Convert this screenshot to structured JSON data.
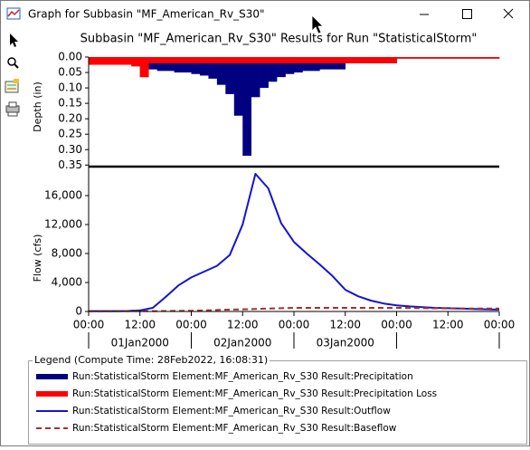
{
  "window": {
    "title": "Graph for Subbasin \"MF_American_Rv_S30\""
  },
  "legend": {
    "title": "Legend (Compute Time: 28Feb2022, 16:08:31)"
  },
  "chart_data": [
    {
      "type": "bar",
      "title": "Subbasin \"MF_American_Rv_S30\" Results for Run \"StatisticalStorm\"",
      "ylabel": "Depth (in)",
      "y_inverted": true,
      "xlim": [
        "01Jan2000 00:00",
        "05Jan2000 00:00"
      ],
      "ylim": [
        0,
        0.355
      ],
      "yticks": [
        {
          "value": 0,
          "label": "0.00"
        },
        0.05,
        {
          "value": 0.1,
          "label": "0.10"
        },
        0.15,
        {
          "value": 0.2,
          "label": "0.20"
        },
        0.25,
        {
          "value": 0.3,
          "label": "0.30"
        },
        0.35
      ],
      "x": [
        "01Jan2000 00:00",
        "01Jan2000 02:00",
        "01Jan2000 04:00",
        "01Jan2000 06:00",
        "01Jan2000 08:00",
        "01Jan2000 10:00",
        "01Jan2000 12:00",
        "01Jan2000 14:00",
        "01Jan2000 16:00",
        "01Jan2000 18:00",
        "01Jan2000 20:00",
        "01Jan2000 22:00",
        "02Jan2000 00:00",
        "02Jan2000 02:00",
        "02Jan2000 04:00",
        "02Jan2000 06:00",
        "02Jan2000 08:00",
        "02Jan2000 10:00",
        "02Jan2000 12:00",
        "02Jan2000 14:00",
        "02Jan2000 16:00",
        "02Jan2000 18:00",
        "02Jan2000 20:00",
        "02Jan2000 22:00",
        "03Jan2000 00:00",
        "03Jan2000 02:00",
        "03Jan2000 04:00",
        "03Jan2000 06:00",
        "03Jan2000 08:00",
        "03Jan2000 10:00",
        "03Jan2000 12:00",
        "03Jan2000 14:00",
        "03Jan2000 16:00",
        "03Jan2000 18:00",
        "03Jan2000 20:00",
        "03Jan2000 22:00",
        "04Jan2000 00:00",
        "04Jan2000 02:00",
        "04Jan2000 04:00",
        "04Jan2000 06:00",
        "04Jan2000 08:00",
        "04Jan2000 10:00",
        "04Jan2000 12:00",
        "04Jan2000 14:00",
        "04Jan2000 16:00",
        "04Jan2000 18:00",
        "04Jan2000 20:00",
        "04Jan2000 22:00"
      ],
      "series": [
        {
          "name": "Run:StatisticalStorm Element:MF_American_Rv_S30 Result:Precipitation",
          "color": "#000080",
          "values": [
            0.025,
            0.025,
            0.025,
            0.025,
            0.025,
            0.03,
            0.065,
            0.04,
            0.045,
            0.045,
            0.05,
            0.05,
            0.055,
            0.06,
            0.07,
            0.09,
            0.12,
            0.19,
            0.32,
            0.13,
            0.1,
            0.08,
            0.065,
            0.055,
            0.05,
            0.045,
            0.045,
            0.04,
            0.04,
            0.04,
            0.02,
            0.02,
            0.02,
            0.02,
            0.02,
            0.02,
            0.005,
            0.005,
            0.005,
            0.005,
            0.005,
            0.005,
            0.005,
            0.005,
            0.005,
            0.005,
            0.005,
            0.005
          ]
        },
        {
          "name": "Run:StatisticalStorm Element:MF_American_Rv_S30 Result:Precipitation Loss",
          "color": "#ff0000",
          "values": [
            0.025,
            0.025,
            0.025,
            0.025,
            0.025,
            0.03,
            0.065,
            0.02,
            0.02,
            0.02,
            0.02,
            0.02,
            0.02,
            0.02,
            0.02,
            0.02,
            0.02,
            0.02,
            0.02,
            0.02,
            0.02,
            0.02,
            0.02,
            0.02,
            0.02,
            0.02,
            0.02,
            0.02,
            0.02,
            0.02,
            0.02,
            0.02,
            0.02,
            0.02,
            0.02,
            0.02,
            0.005,
            0.005,
            0.005,
            0.005,
            0.005,
            0.005,
            0.005,
            0.005,
            0.005,
            0.005,
            0.005,
            0.005
          ]
        }
      ]
    },
    {
      "type": "line",
      "ylabel": "Flow (cfs)",
      "xlim": [
        "01Jan2000 00:00",
        "05Jan2000 00:00"
      ],
      "ylim": [
        0,
        20000
      ],
      "yticks": [
        0,
        {
          "value": 4000,
          "label": "4,000"
        },
        {
          "value": 8000,
          "label": "8,000"
        },
        {
          "value": 12000,
          "label": "12,000"
        },
        {
          "value": 16000,
          "label": "16,000"
        }
      ],
      "xticks": [
        {
          "value": "01Jan2000 00:00",
          "label": "00:00"
        },
        {
          "value": "01Jan2000 12:00",
          "label": "12:00"
        },
        {
          "value": "02Jan2000 00:00",
          "label": "00:00"
        },
        {
          "value": "02Jan2000 12:00",
          "label": "12:00"
        },
        {
          "value": "03Jan2000 00:00",
          "label": "00:00"
        },
        {
          "value": "03Jan2000 12:00",
          "label": "12:00"
        },
        {
          "value": "04Jan2000 00:00",
          "label": "00:00"
        },
        {
          "value": "04Jan2000 12:00",
          "label": "12:00"
        },
        {
          "value": "05Jan2000 00:00",
          "label": "00:00"
        }
      ],
      "xday_labels": [
        {
          "value": "01Jan2000 12:00",
          "label": "01Jan2000"
        },
        {
          "value": "02Jan2000 12:00",
          "label": "02Jan2000"
        },
        {
          "value": "03Jan2000 12:00",
          "label": "03Jan2000"
        }
      ],
      "x": [
        "01Jan2000 00:00",
        "01Jan2000 03:00",
        "01Jan2000 06:00",
        "01Jan2000 09:00",
        "01Jan2000 12:00",
        "01Jan2000 15:00",
        "01Jan2000 18:00",
        "01Jan2000 21:00",
        "02Jan2000 00:00",
        "02Jan2000 03:00",
        "02Jan2000 06:00",
        "02Jan2000 09:00",
        "02Jan2000 12:00",
        "02Jan2000 15:00",
        "02Jan2000 18:00",
        "02Jan2000 21:00",
        "03Jan2000 00:00",
        "03Jan2000 03:00",
        "03Jan2000 06:00",
        "03Jan2000 09:00",
        "03Jan2000 12:00",
        "03Jan2000 15:00",
        "03Jan2000 18:00",
        "03Jan2000 21:00",
        "04Jan2000 00:00",
        "04Jan2000 03:00",
        "04Jan2000 06:00",
        "04Jan2000 09:00",
        "04Jan2000 12:00",
        "04Jan2000 15:00",
        "04Jan2000 18:00",
        "04Jan2000 21:00",
        "05Jan2000 00:00"
      ],
      "series": [
        {
          "name": "Run:StatisticalStorm Element:MF_American_Rv_S30 Result:Outflow",
          "color": "#1414d2",
          "values": [
            50,
            50,
            50,
            60,
            150,
            500,
            2000,
            3600,
            4700,
            5500,
            6300,
            7800,
            12000,
            19000,
            17000,
            12200,
            9600,
            8000,
            6500,
            4900,
            3000,
            2100,
            1500,
            1100,
            850,
            700,
            600,
            500,
            450,
            400,
            350,
            300,
            250
          ]
        },
        {
          "name": "Run:StatisticalStorm Element:MF_American_Rv_S30 Result:Baseflow",
          "color": "#a3312b",
          "dashed": true,
          "values": [
            50,
            50,
            50,
            50,
            50,
            50,
            60,
            80,
            100,
            150,
            200,
            250,
            300,
            350,
            400,
            450,
            500,
            500,
            500,
            500,
            500,
            500,
            500,
            500,
            500,
            480,
            460,
            440,
            420,
            400,
            400,
            400,
            400
          ]
        }
      ]
    }
  ]
}
